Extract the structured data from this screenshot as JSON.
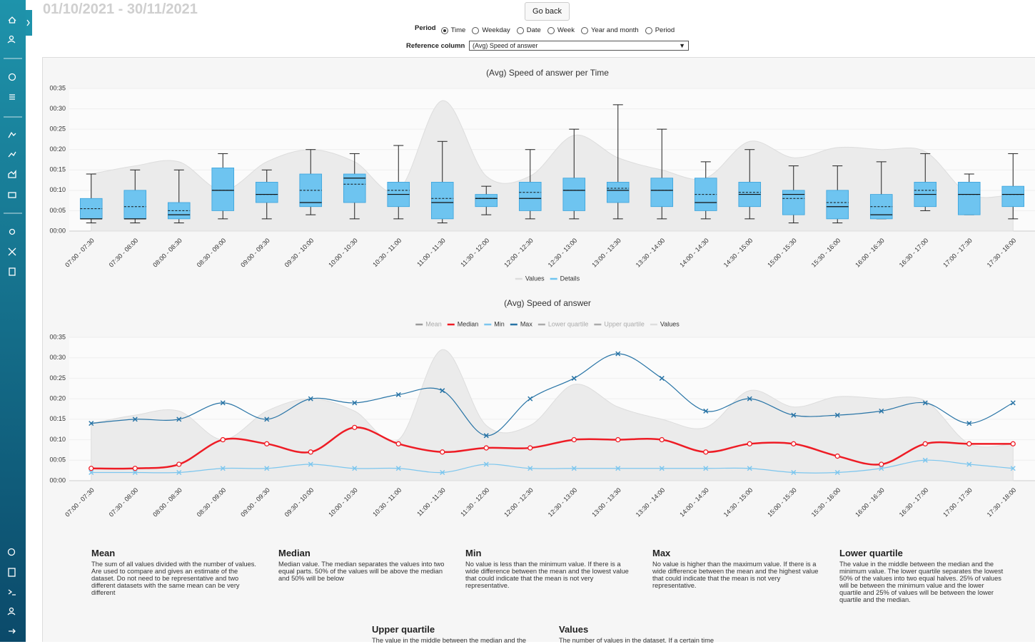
{
  "header": {
    "date_range": "01/10/2021 - 30/11/2021",
    "go_back": "Go back"
  },
  "controls": {
    "period_label": "Period",
    "period_options": [
      "Time",
      "Weekday",
      "Date",
      "Week",
      "Year and month",
      "Period"
    ],
    "selected_index": 0,
    "reference_label": "Reference column",
    "reference_value": "(Avg) Speed of answer"
  },
  "chart_data": [
    {
      "type": "boxplot",
      "title": "(Avg) Speed of answer per Time",
      "categories": [
        "07:00 - 07:30",
        "07:30 - 08:00",
        "08:00 - 08:30",
        "08:30 - 09:00",
        "09:00 - 09:30",
        "09:30 - 10:00",
        "10:00 - 10:30",
        "10:30 - 11:00",
        "11:00 - 11:30",
        "11:30 - 12:00",
        "12:00 - 12:30",
        "12:30 - 13:00",
        "13:00 - 13:30",
        "13:30 - 14:00",
        "14:00 - 14:30",
        "14:30 - 15:00",
        "15:00 - 15:30",
        "15:30 - 16:00",
        "16:00 - 16:30",
        "16:30 - 17:00",
        "17:00 - 17:30",
        "17:30 - 18:00"
      ],
      "ylim": [
        0,
        35
      ],
      "yticks": [
        {
          "value": 0,
          "label": "00:00"
        },
        {
          "value": 5,
          "label": "00:05"
        },
        {
          "value": 10,
          "label": "00:10"
        },
        {
          "value": 15,
          "label": "00:15"
        },
        {
          "value": 20,
          "label": "00:20"
        },
        {
          "value": 25,
          "label": "00:25"
        },
        {
          "value": 30,
          "label": "00:30"
        },
        {
          "value": 35,
          "label": "00:35"
        }
      ],
      "grid": true,
      "series": [
        {
          "name": "Values",
          "type": "area",
          "color": "#dddddd",
          "values": [
            14,
            16,
            17,
            10,
            17,
            20,
            17,
            10,
            32,
            13.5,
            13.5,
            23.5,
            18,
            15,
            13,
            22,
            18,
            20.5,
            20,
            19.5,
            9,
            9
          ]
        },
        {
          "name": "Details",
          "type": "box",
          "color": "#6ec4f0",
          "min": [
            2,
            2,
            2,
            3,
            3,
            4,
            3,
            3,
            2,
            4,
            3,
            3,
            3,
            3,
            3,
            3,
            2,
            2,
            3,
            5,
            4,
            3
          ],
          "q1": [
            3,
            3,
            3,
            5,
            7,
            6,
            7,
            6,
            3,
            6,
            5,
            5,
            7,
            6,
            5,
            6,
            4,
            3,
            3,
            6,
            4,
            6
          ],
          "median": [
            3,
            3,
            4,
            10,
            9,
            7,
            13,
            9,
            7,
            8,
            8,
            10,
            10,
            10,
            7,
            9,
            9,
            6,
            4,
            9,
            9,
            9
          ],
          "q3": [
            8,
            10,
            7,
            15.5,
            12,
            14,
            14,
            12,
            12,
            9,
            12,
            13,
            12,
            13,
            13,
            12,
            10,
            10,
            9,
            12,
            12,
            11
          ],
          "max": [
            14,
            15,
            15,
            19,
            15,
            20,
            19,
            21,
            22,
            11,
            20,
            25,
            31,
            25,
            17,
            20,
            16,
            16,
            17,
            19,
            14,
            19
          ],
          "mean": [
            5.5,
            6,
            5,
            10,
            9,
            10,
            11.5,
            10,
            8,
            8,
            9.5,
            10,
            10.5,
            10,
            9,
            9.5,
            8,
            7,
            6,
            10,
            9,
            9
          ]
        }
      ]
    },
    {
      "type": "line",
      "title": "(Avg) Speed of answer",
      "categories": [
        "07:00 - 07:30",
        "07:30 - 08:00",
        "08:00 - 08:30",
        "08:30 - 09:00",
        "09:00 - 09:30",
        "09:30 - 10:00",
        "10:00 - 10:30",
        "10:30 - 11:00",
        "11:00 - 11:30",
        "11:30 - 12:00",
        "12:00 - 12:30",
        "12:30 - 13:00",
        "13:00 - 13:30",
        "13:30 - 14:00",
        "14:00 - 14:30",
        "14:30 - 15:00",
        "15:00 - 15:30",
        "15:30 - 16:00",
        "16:00 - 16:30",
        "16:30 - 17:00",
        "17:00 - 17:30",
        "17:30 - 18:00"
      ],
      "ylim": [
        0,
        35
      ],
      "yticks": [
        {
          "value": 0,
          "label": "00:00"
        },
        {
          "value": 5,
          "label": "00:05"
        },
        {
          "value": 10,
          "label": "00:10"
        },
        {
          "value": 15,
          "label": "00:15"
        },
        {
          "value": 20,
          "label": "00:20"
        },
        {
          "value": 25,
          "label": "00:25"
        },
        {
          "value": 30,
          "label": "00:30"
        },
        {
          "value": 35,
          "label": "00:35"
        }
      ],
      "grid": true,
      "series": [
        {
          "name": "Mean",
          "color": "#999999",
          "hidden": true
        },
        {
          "name": "Median",
          "color": "#ee1c25",
          "marker": "circle",
          "values": [
            3,
            3,
            4,
            10,
            9,
            7,
            13,
            9,
            7,
            8,
            8,
            10,
            10,
            10,
            7,
            9,
            9,
            6,
            4,
            9,
            9,
            9
          ]
        },
        {
          "name": "Min",
          "color": "#7cc6ee",
          "marker": "x",
          "values": [
            2,
            2,
            2,
            3,
            3,
            4,
            3,
            3,
            2,
            4,
            3,
            3,
            3,
            3,
            3,
            3,
            2,
            2,
            3,
            5,
            4,
            3
          ]
        },
        {
          "name": "Max",
          "color": "#2874a6",
          "marker": "x",
          "values": [
            14,
            15,
            15,
            19,
            15,
            20,
            19,
            21,
            22,
            11,
            20,
            25,
            31,
            25,
            17,
            20,
            16,
            16,
            17,
            19,
            14,
            19
          ]
        },
        {
          "name": "Lower quartile",
          "color": "#aaaaaa",
          "hidden": true
        },
        {
          "name": "Upper quartile",
          "color": "#aaaaaa",
          "hidden": true
        },
        {
          "name": "Values",
          "type": "area",
          "color": "#dddddd",
          "values": [
            14,
            16,
            17,
            10,
            17,
            20,
            17,
            10,
            32,
            13.5,
            13.5,
            23.5,
            18,
            15,
            13,
            22,
            18,
            20.5,
            20,
            19.5,
            9,
            9
          ]
        }
      ]
    }
  ],
  "definitions": [
    {
      "title": "Mean",
      "text": "The sum of all values divided with the number of values. Are used to compare and gives an estimate of the dataset. Do not need to be representative and two different datasets with the same mean can be very different"
    },
    {
      "title": "Median",
      "text": "Median value. The median separates the values into two equal parts. 50% of the values will be above the median and 50% will be below"
    },
    {
      "title": "Min",
      "text": "No value is less than the minimum value. If there is a wide difference between the mean and the lowest value that could indicate that the mean is not very representative."
    },
    {
      "title": "Max",
      "text": "No value is higher than the maximum value. If there is a wide difference between the mean and the highest value that could indicate that the mean is not very representative."
    },
    {
      "title": "Lower quartile",
      "text": "The value in the middle between the median and the minimum value. The lower quartile separates the lowest 50% of the values into two equal halves. 25% of values will be between the minimum value and the lower quartile and 25% of values will be between the lower quartile and the median."
    },
    {
      "title": "Upper quartile",
      "text": "The value in the middle between the median and the"
    },
    {
      "title": "Values",
      "text": "The number of values in the dataset. If a certain time"
    }
  ]
}
